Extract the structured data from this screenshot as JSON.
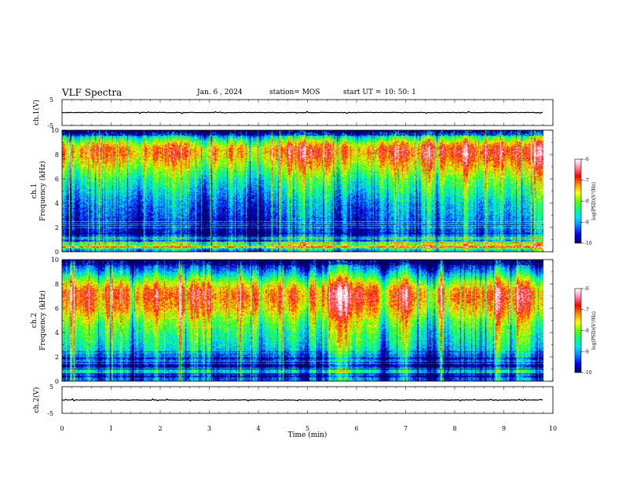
{
  "header": {
    "title": "VLF Spectra",
    "date": "Jan. 6 , 2024",
    "station": "station= MOS",
    "start_label": "start UT =",
    "start_time": "10: 50: 1"
  },
  "chart_data": [
    {
      "type": "line",
      "panel": "ch1-waveform",
      "ylabel": "ch.1(V)",
      "ylim": [
        -5,
        5
      ],
      "yticks": [
        "5",
        "-5"
      ],
      "xlim": [
        0,
        10
      ],
      "series": [
        {
          "x": [
            0,
            9.8
          ],
          "y": [
            0,
            0
          ]
        }
      ],
      "trace_color": "#000000"
    },
    {
      "type": "heatmap",
      "panel": "ch1-spectrogram",
      "ylabel": "ch.1 Frequency (kHz)",
      "ylim": [
        0,
        10
      ],
      "yticks": [
        "0",
        "2",
        "4",
        "6",
        "8",
        "10"
      ],
      "xlim": [
        0,
        10
      ],
      "data_extent_x": [
        0,
        9.8
      ],
      "band_profile": [
        {
          "f": 0.0,
          "level": -8.6
        },
        {
          "f": 0.5,
          "level": -7.6
        },
        {
          "f": 1.0,
          "level": -8.9
        },
        {
          "f": 1.5,
          "level": -9.5
        },
        {
          "f": 2.0,
          "level": -9.5
        },
        {
          "f": 2.5,
          "level": -9.4
        },
        {
          "f": 3.0,
          "level": -9.2
        },
        {
          "f": 4.0,
          "level": -9.0
        },
        {
          "f": 5.0,
          "level": -8.6
        },
        {
          "f": 6.0,
          "level": -8.2
        },
        {
          "f": 7.0,
          "level": -7.6
        },
        {
          "f": 8.0,
          "level": -7.0
        },
        {
          "f": 8.5,
          "level": -7.0
        },
        {
          "f": 9.0,
          "level": -7.6
        },
        {
          "f": 9.5,
          "level": -8.6
        },
        {
          "f": 10.0,
          "level": -9.8
        }
      ],
      "colorbar": {
        "label": "log(PSD)(V²/Hz)",
        "min": -10,
        "max": -6,
        "ticks": [
          "-6",
          "-7",
          "-8",
          "-9",
          "-10"
        ]
      }
    },
    {
      "type": "heatmap",
      "panel": "ch2-spectrogram",
      "ylabel": "ch.2 Frequency (kHz)",
      "ylim": [
        0,
        10
      ],
      "yticks": [
        "0",
        "2",
        "4",
        "6",
        "8",
        "10"
      ],
      "xlim": [
        0,
        10
      ],
      "data_extent_x": [
        0,
        9.8
      ],
      "band_profile": [
        {
          "f": 0.0,
          "level": -9.2
        },
        {
          "f": 0.5,
          "level": -9.4
        },
        {
          "f": 1.0,
          "level": -9.6
        },
        {
          "f": 1.5,
          "level": -9.8
        },
        {
          "f": 2.0,
          "level": -9.0
        },
        {
          "f": 3.0,
          "level": -8.6
        },
        {
          "f": 4.0,
          "level": -8.3
        },
        {
          "f": 5.0,
          "level": -7.9
        },
        {
          "f": 6.0,
          "level": -7.3
        },
        {
          "f": 7.0,
          "level": -7.0
        },
        {
          "f": 7.5,
          "level": -7.1
        },
        {
          "f": 8.0,
          "level": -7.6
        },
        {
          "f": 8.5,
          "level": -8.2
        },
        {
          "f": 9.0,
          "level": -8.9
        },
        {
          "f": 9.5,
          "level": -9.5
        },
        {
          "f": 10.0,
          "level": -9.9
        }
      ],
      "colorbar": {
        "label": "log(PSD)(V²/Hz)",
        "min": -10,
        "max": -6,
        "ticks": [
          "-6",
          "-7",
          "-8",
          "-9",
          "-10"
        ]
      }
    },
    {
      "type": "line",
      "panel": "ch2-waveform",
      "ylabel": "ch.2(V)",
      "ylim": [
        -5,
        5
      ],
      "yticks": [
        "5",
        "-5"
      ],
      "xlim": [
        0,
        10
      ],
      "series": [
        {
          "x": [
            0,
            9.8
          ],
          "y": [
            0,
            0
          ]
        }
      ],
      "trace_color": "#000000"
    }
  ],
  "x_axis": {
    "label": "Time (min)",
    "ticks": [
      "0",
      "1",
      "2",
      "3",
      "4",
      "5",
      "6",
      "7",
      "8",
      "9",
      "10"
    ],
    "range": [
      0,
      10
    ]
  },
  "colormap": [
    "#000066",
    "#0000ff",
    "#0080ff",
    "#00e0ff",
    "#00ff80",
    "#60ff00",
    "#ffff00",
    "#ff9000",
    "#ff0000",
    "#ff80a0",
    "#ffffff"
  ]
}
